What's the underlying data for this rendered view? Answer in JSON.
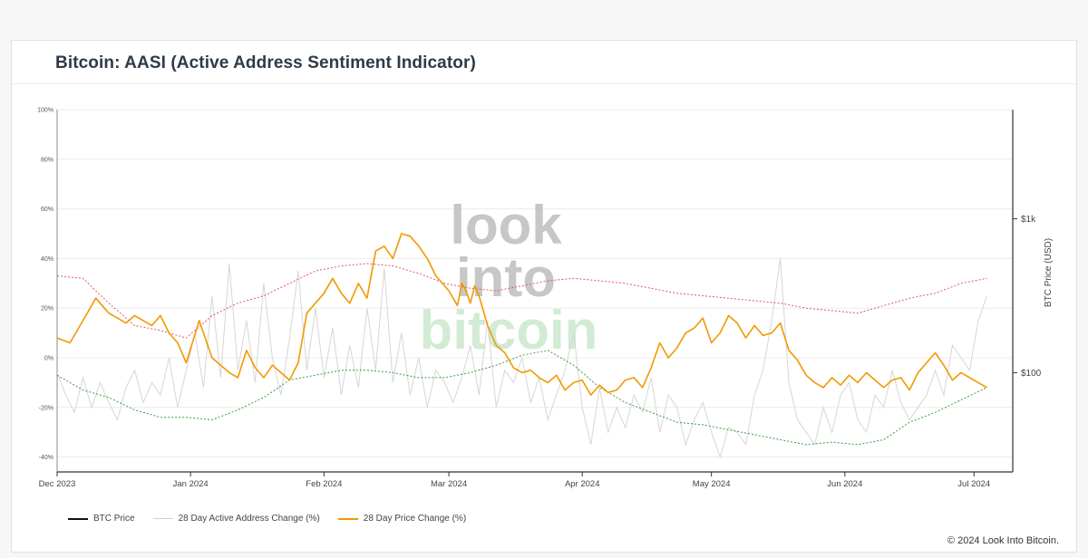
{
  "title": "Bitcoin: AASI (Active Address Sentiment Indicator)",
  "copyright": "© 2024 Look Into Bitcoin.",
  "watermark": [
    "look",
    "into",
    "bitcoin"
  ],
  "colors": {
    "price_change": "#f29900",
    "active_address": "#d6d6d6",
    "upper_band": "#e05a5a",
    "lower_band": "#3f9a3f",
    "btc_price": "#111111",
    "grid": "#ececec"
  },
  "legend": [
    {
      "label": "BTC Price",
      "color": "#111111"
    },
    {
      "label": "28 Day Active Address Change (%)",
      "color": "#d6d6d6"
    },
    {
      "label": "28 Day Price Change (%)",
      "color": "#f29900"
    }
  ],
  "chart_data": {
    "type": "line",
    "title": "Bitcoin: AASI (Active Address Sentiment Indicator)",
    "x_unit": "days since 2023-12-01",
    "x_ticks": [
      {
        "label": "Dec 2023",
        "day": 0
      },
      {
        "label": "Jan 2024",
        "day": 31
      },
      {
        "label": "Feb 2024",
        "day": 62
      },
      {
        "label": "Mar 2024",
        "day": 91
      },
      {
        "label": "Apr 2024",
        "day": 122
      },
      {
        "label": "May 2024",
        "day": 152
      },
      {
        "label": "Jun 2024",
        "day": 183
      },
      {
        "label": "Jul 2024",
        "day": 213
      }
    ],
    "xlim": [
      0,
      222
    ],
    "y_left": {
      "ylim": [
        -46,
        100
      ],
      "ticks": [
        {
          "value": 100,
          "label": "100%"
        },
        {
          "value": 80,
          "label": "80%"
        },
        {
          "value": 60,
          "label": "60%"
        },
        {
          "value": 40,
          "label": "40%"
        },
        {
          "value": 20,
          "label": "20%"
        },
        {
          "value": 0,
          "label": "0%"
        },
        {
          "value": -20,
          "label": "-20%"
        },
        {
          "value": -40,
          "label": "-40%"
        }
      ]
    },
    "y_right": {
      "label": "BTC Price (USD)",
      "scale": "log",
      "ticks": [
        {
          "label": "$1k",
          "left_equiv": 56
        },
        {
          "label": "$100",
          "left_equiv": -6
        }
      ]
    },
    "series": [
      {
        "name": "28 Day Price Change (%)",
        "x": [
          0,
          3,
          6,
          9,
          12,
          14,
          16,
          18,
          20,
          22,
          24,
          26,
          28,
          30,
          33,
          36,
          38,
          40,
          42,
          44,
          46,
          48,
          50,
          52,
          54,
          56,
          58,
          60,
          62,
          64,
          66,
          68,
          70,
          72,
          74,
          76,
          78,
          80,
          82,
          84,
          86,
          88,
          90,
          91,
          92,
          93,
          94,
          95,
          96,
          97,
          98,
          100,
          102,
          104,
          106,
          108,
          110,
          112,
          114,
          116,
          118,
          120,
          122,
          124,
          126,
          128,
          130,
          132,
          134,
          136,
          138,
          140,
          142,
          144,
          146,
          148,
          150,
          152,
          154,
          156,
          158,
          160,
          162,
          164,
          166,
          168,
          170,
          172,
          174,
          176,
          178,
          180,
          182,
          184,
          186,
          188,
          190,
          192,
          194,
          196,
          198,
          200,
          202,
          204,
          206,
          208,
          210,
          212,
          214,
          216
        ],
        "values": [
          8,
          6,
          15,
          24,
          18,
          16,
          14,
          17,
          15,
          13,
          17,
          10,
          6,
          -2,
          15,
          0,
          -3,
          -6,
          -8,
          3,
          -4,
          -8,
          -3,
          -6,
          -9,
          -2,
          18,
          22,
          26,
          32,
          26,
          22,
          30,
          24,
          43,
          45,
          40,
          50,
          49,
          45,
          40,
          33,
          29,
          27,
          24,
          21,
          30,
          27,
          22,
          29,
          25,
          13,
          5,
          2,
          -4,
          -6,
          -5,
          -8,
          -10,
          -7,
          -13,
          -10,
          -9,
          -15,
          -11,
          -14,
          -13,
          -9,
          -8,
          -12,
          -4,
          6,
          0,
          4,
          10,
          12,
          16,
          6,
          10,
          17,
          14,
          8,
          13,
          9,
          10,
          14,
          3,
          -1,
          -7,
          -10,
          -12,
          -8,
          -11,
          -7,
          -10,
          -6,
          -9,
          -12,
          -9,
          -8,
          -13,
          -6,
          -2,
          2,
          -3,
          -9,
          -6,
          -8,
          -10,
          -12
        ]
      },
      {
        "name": "28 Day Active Address Change (%)",
        "x": [
          0,
          2,
          4,
          6,
          8,
          10,
          12,
          14,
          16,
          18,
          20,
          22,
          24,
          26,
          28,
          30,
          32,
          34,
          36,
          38,
          40,
          42,
          44,
          46,
          48,
          50,
          52,
          54,
          56,
          58,
          60,
          62,
          64,
          66,
          68,
          70,
          72,
          74,
          76,
          78,
          80,
          82,
          84,
          86,
          88,
          90,
          92,
          94,
          96,
          98,
          100,
          102,
          104,
          106,
          108,
          110,
          112,
          114,
          116,
          118,
          120,
          122,
          124,
          126,
          128,
          130,
          132,
          134,
          136,
          138,
          140,
          142,
          144,
          146,
          148,
          150,
          152,
          154,
          156,
          158,
          160,
          162,
          164,
          166,
          168,
          170,
          172,
          174,
          176,
          178,
          180,
          182,
          184,
          186,
          188,
          190,
          192,
          194,
          196,
          198,
          200,
          202,
          204,
          206,
          208,
          210,
          212,
          214,
          216
        ],
        "values": [
          -6,
          -15,
          -22,
          -8,
          -20,
          -10,
          -18,
          -25,
          -12,
          -5,
          -18,
          -10,
          -15,
          0,
          -20,
          -5,
          10,
          -12,
          25,
          -8,
          38,
          -5,
          15,
          -10,
          30,
          0,
          -15,
          8,
          35,
          -5,
          20,
          -8,
          12,
          -15,
          5,
          -12,
          20,
          -5,
          36,
          -10,
          10,
          -15,
          0,
          -20,
          -5,
          -10,
          -18,
          -8,
          5,
          -15,
          15,
          -20,
          -5,
          -10,
          0,
          -18,
          -8,
          -25,
          -15,
          -5,
          10,
          -20,
          -35,
          -12,
          -30,
          -20,
          -28,
          -15,
          -22,
          -8,
          -30,
          -15,
          -20,
          -35,
          -25,
          -18,
          -30,
          -40,
          -28,
          -30,
          -35,
          -15,
          -5,
          15,
          40,
          -10,
          -25,
          -30,
          -35,
          -20,
          -30,
          -15,
          -10,
          -25,
          -30,
          -15,
          -20,
          -5,
          -18,
          -25,
          -20,
          -15,
          -5,
          -15,
          5,
          0,
          -5,
          15,
          25
        ]
      },
      {
        "name": "Upper band (dotted)",
        "x": [
          0,
          6,
          12,
          18,
          24,
          30,
          36,
          42,
          48,
          54,
          60,
          66,
          72,
          78,
          84,
          90,
          96,
          102,
          108,
          114,
          120,
          126,
          132,
          138,
          144,
          150,
          156,
          162,
          168,
          174,
          180,
          186,
          192,
          198,
          204,
          210,
          216
        ],
        "values": [
          33,
          32,
          22,
          13,
          11,
          8,
          17,
          22,
          25,
          30,
          35,
          37,
          38,
          37,
          34,
          30,
          28,
          27,
          29,
          31,
          32,
          31,
          30,
          28,
          26,
          25,
          24,
          23,
          22,
          20,
          19,
          18,
          21,
          24,
          26,
          30,
          32
        ]
      },
      {
        "name": "Lower band (dotted)",
        "x": [
          0,
          6,
          12,
          18,
          24,
          30,
          36,
          42,
          48,
          54,
          60,
          66,
          72,
          78,
          84,
          90,
          96,
          102,
          108,
          114,
          120,
          126,
          132,
          138,
          144,
          150,
          156,
          162,
          168,
          174,
          180,
          186,
          192,
          198,
          204,
          210,
          216
        ],
        "values": [
          -7,
          -13,
          -16,
          -21,
          -24,
          -24,
          -25,
          -21,
          -16,
          -9,
          -7,
          -5,
          -5,
          -6,
          -8,
          -8,
          -6,
          -3,
          1,
          3,
          -3,
          -12,
          -18,
          -22,
          -26,
          -27,
          -29,
          -31,
          -33,
          -35,
          -34,
          -35,
          -33,
          -26,
          -22,
          -17,
          -12
        ]
      }
    ]
  }
}
